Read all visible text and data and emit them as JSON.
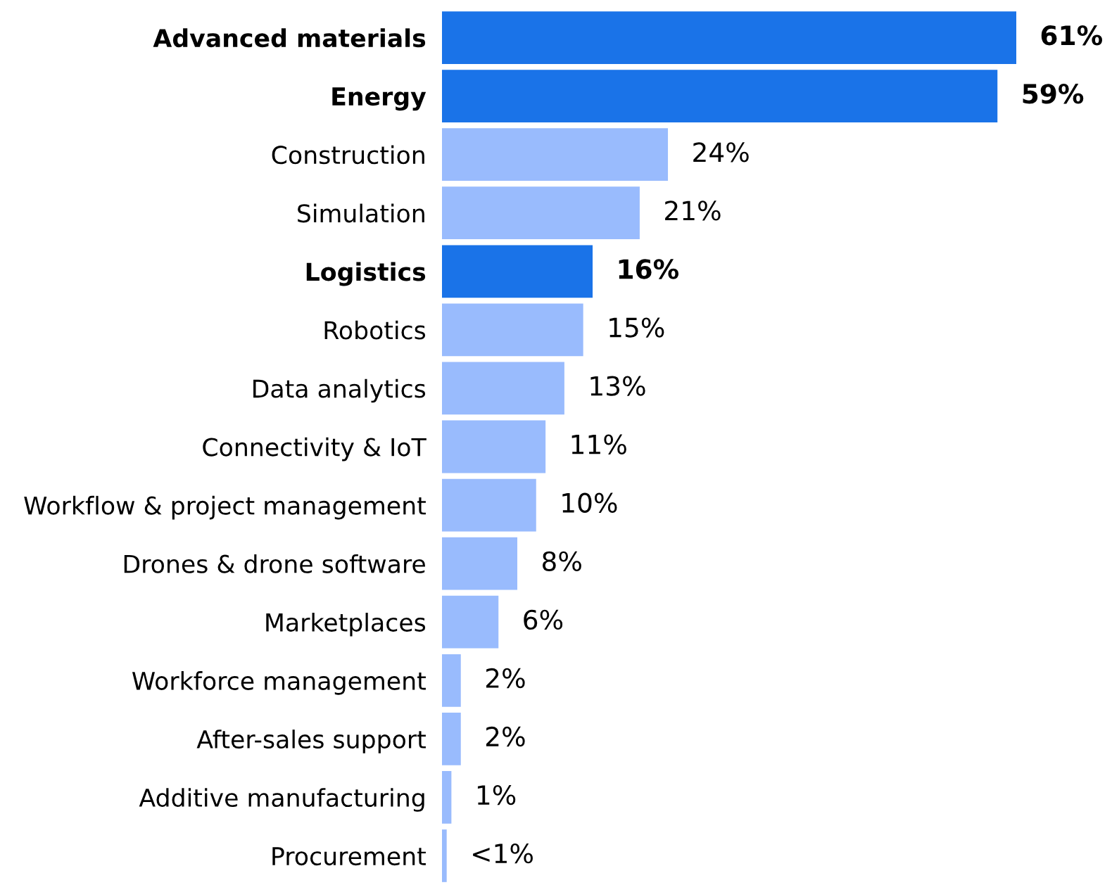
{
  "chart_data": {
    "type": "bar",
    "orientation": "horizontal",
    "categories": [
      "Advanced materials",
      "Energy",
      "Construction",
      "Simulation",
      "Logistics",
      "Robotics",
      "Data analytics",
      "Connectivity & IoT",
      "Workflow & project management",
      "Drones & drone software",
      "Marketplaces",
      "Workforce management",
      "After-sales support",
      "Additive manufacturing",
      "Procurement"
    ],
    "values": [
      61,
      59,
      24,
      21,
      16,
      15,
      13,
      11,
      10,
      8,
      6,
      2,
      2,
      1,
      0.5
    ],
    "value_labels": [
      "61%",
      "59%",
      "24%",
      "21%",
      "16%",
      "15%",
      "13%",
      "11%",
      "10%",
      "8%",
      "6%",
      "2%",
      "2%",
      "1%",
      "<1%"
    ],
    "colors": [
      "#1a73e8",
      "#1a73e8",
      "#99bbfd",
      "#99bbfd",
      "#1a73e8",
      "#99bbfd",
      "#99bbfd",
      "#99bbfd",
      "#99bbfd",
      "#99bbfd",
      "#99bbfd",
      "#99bbfd",
      "#99bbfd",
      "#99bbfd",
      "#99bbfd"
    ]
  }
}
